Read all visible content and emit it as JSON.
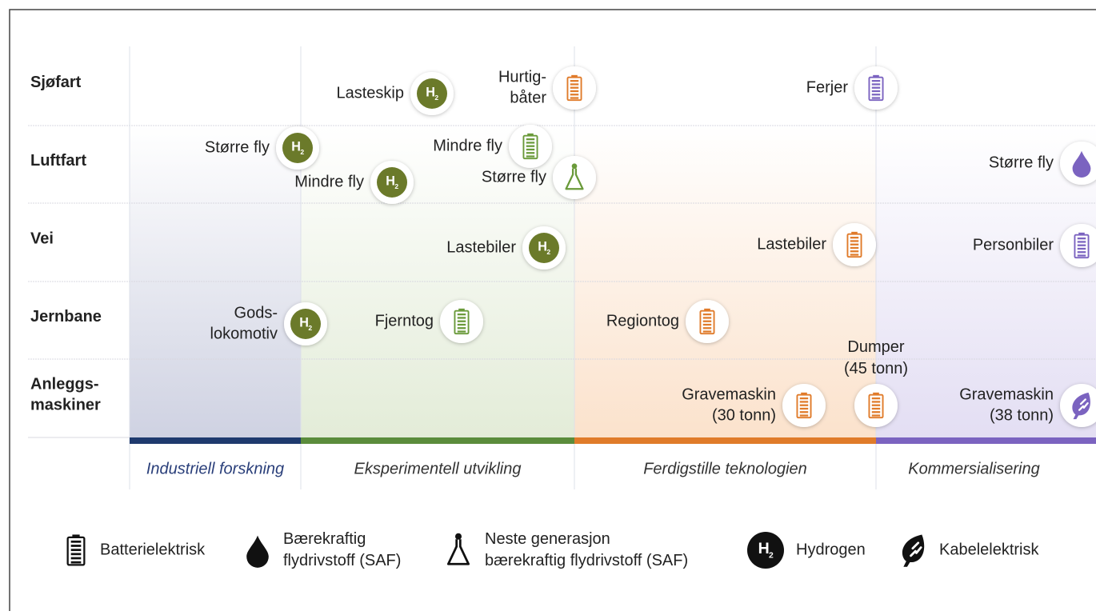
{
  "rows": [
    "Sjøfart",
    "Luftfart",
    "Vei",
    "Jernbane",
    [
      "Anleggs-",
      "maskiner"
    ]
  ],
  "phases": [
    "Industriell forskning",
    "Eksperimentell utvikling",
    "Ferdigstille teknologien",
    "Kommersialisering"
  ],
  "items": [
    {
      "label": [
        "Lasteskip"
      ]
    },
    {
      "label": [
        "Hurtig-",
        "båter"
      ]
    },
    {
      "label": [
        "Ferjer"
      ]
    },
    {
      "label": [
        "Større fly"
      ]
    },
    {
      "label": [
        "Mindre fly"
      ]
    },
    {
      "label": [
        "Mindre fly"
      ]
    },
    {
      "label": [
        "Større fly"
      ]
    },
    {
      "label": [
        "Større fly"
      ]
    },
    {
      "label": [
        "Lastebiler"
      ]
    },
    {
      "label": [
        "Lastebiler"
      ]
    },
    {
      "label": [
        "Personbiler"
      ]
    },
    {
      "label": [
        "Gods-",
        "lokomotiv"
      ]
    },
    {
      "label": [
        "Fjerntog"
      ]
    },
    {
      "label": [
        "Regiontog"
      ]
    },
    {
      "label": [
        "Gravemaskin",
        "(30 tonn)"
      ]
    },
    {
      "label": [
        "Dumper",
        "(45 tonn)"
      ]
    },
    {
      "label": [
        "Gravemaskin",
        "(38 tonn)"
      ]
    }
  ],
  "hydrogen_symbol": {
    "letter": "H",
    "sub": "2"
  },
  "legend": [
    {
      "label": [
        "Batterielektrisk"
      ]
    },
    {
      "label": [
        "Bærekraftig",
        "flydrivstoff (SAF)"
      ]
    },
    {
      "label": [
        "Neste generasjon",
        "bærekraftig flydrivstoff (SAF)"
      ]
    },
    {
      "label": [
        "Hydrogen"
      ]
    },
    {
      "label": [
        "Kabelelektrisk"
      ]
    }
  ]
}
